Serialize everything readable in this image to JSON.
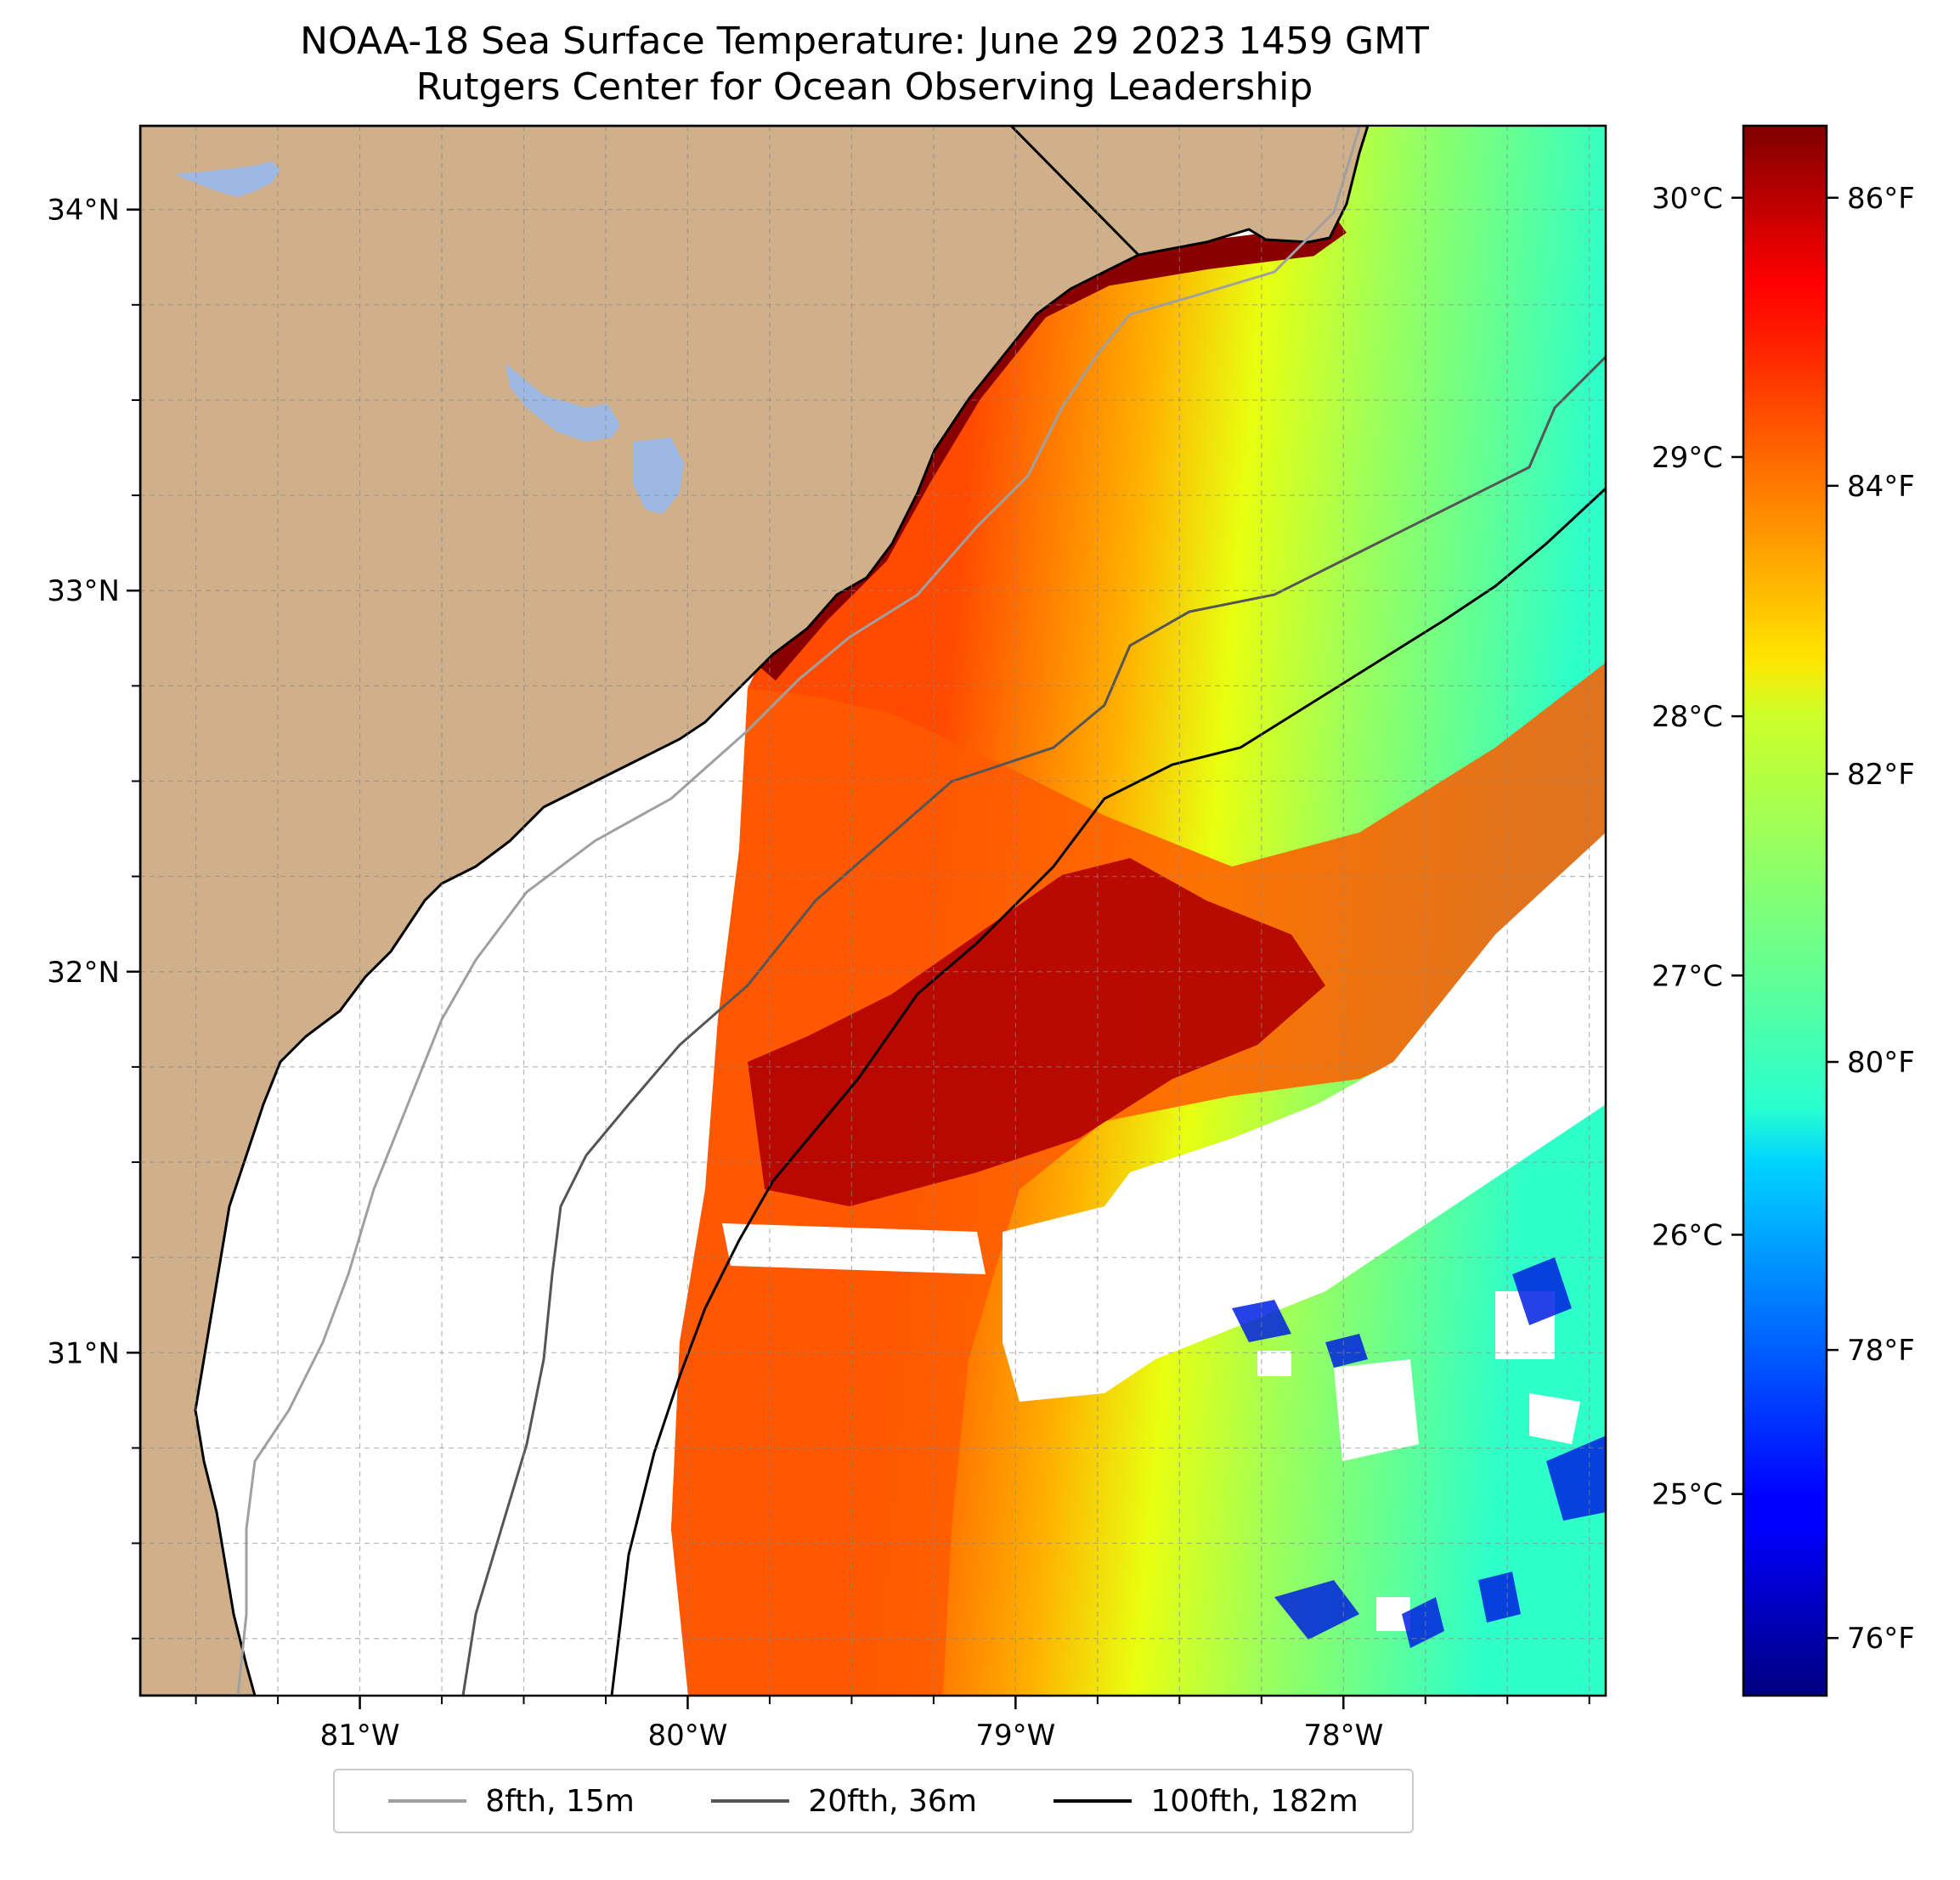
{
  "title": {
    "line1": "NOAA-18 Sea Surface Temperature: June 29 2023 1459 GMT",
    "line2": "Rutgers Center for Ocean Observing Leadership"
  },
  "map": {
    "lon_range": [
      -81.67,
      -77.2
    ],
    "lat_range": [
      30.1,
      34.22
    ],
    "lon_ticks": [
      {
        "value": -81,
        "label": "81°W"
      },
      {
        "value": -80,
        "label": "80°W"
      },
      {
        "value": -79,
        "label": "79°W"
      },
      {
        "value": -78,
        "label": "78°W"
      }
    ],
    "lat_ticks": [
      {
        "value": 31,
        "label": "31°N"
      },
      {
        "value": 32,
        "label": "32°N"
      },
      {
        "value": 33,
        "label": "33°N"
      },
      {
        "value": 34,
        "label": "34°N"
      }
    ],
    "land_color": "#CFB08A",
    "water_body_color": "#9DB9E3",
    "gridlines": true
  },
  "colorbar": {
    "celsius_ticks": [
      "30°C",
      "29°C",
      "28°C",
      "27°C",
      "26°C",
      "25°C"
    ],
    "fahrenheit_ticks": [
      "86°F",
      "84°F",
      "82°F",
      "80°F",
      "78°F",
      "76°F"
    ],
    "colormap": "jet",
    "range_f": [
      75.6,
      86.5
    ]
  },
  "legend": {
    "items": [
      {
        "label": "8fth, 15m",
        "color": "#a0a0a0"
      },
      {
        "label": "20fth, 36m",
        "color": "#555555"
      },
      {
        "label": "100fth, 182m",
        "color": "#000000"
      }
    ]
  }
}
